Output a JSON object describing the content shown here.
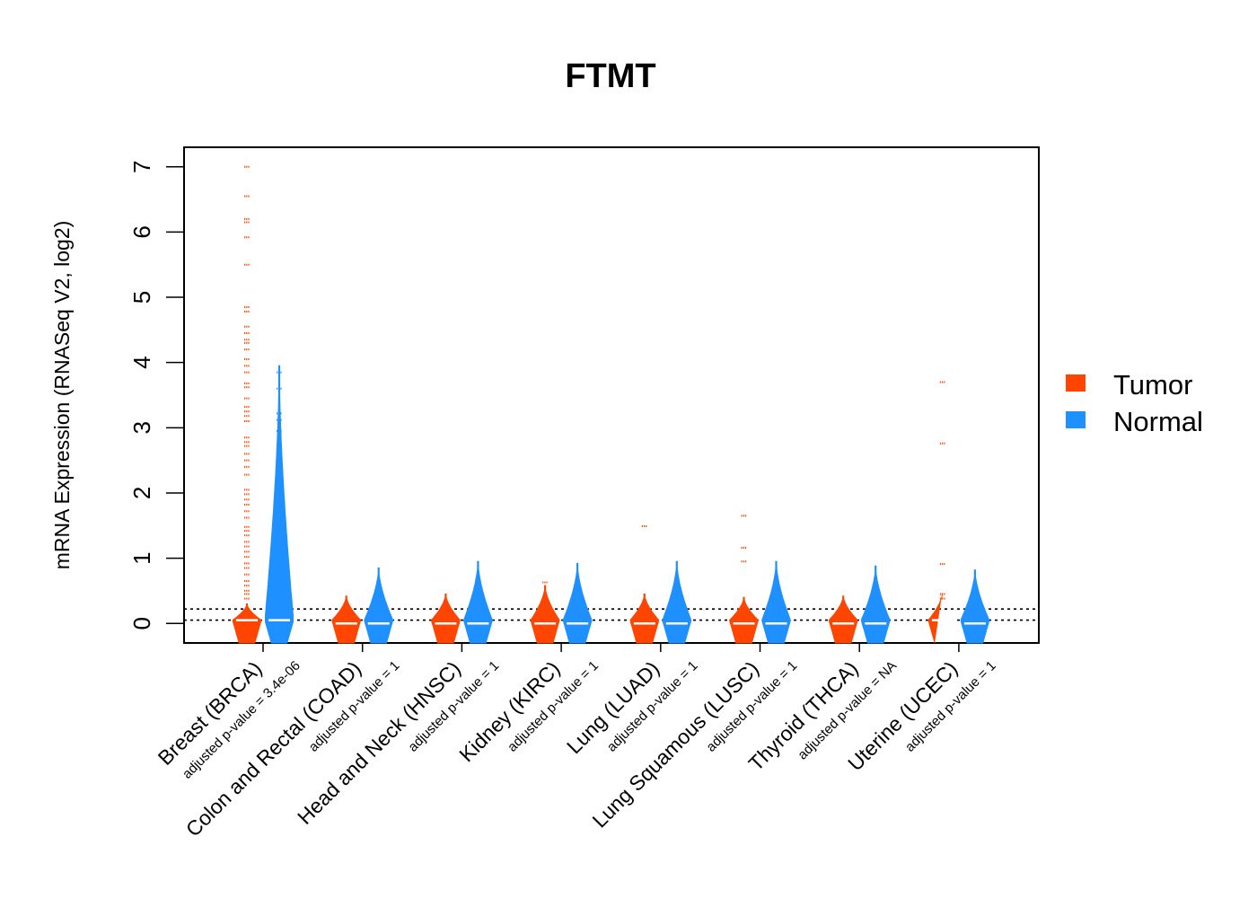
{
  "colors": {
    "tumor": "#ff4500",
    "normal": "#1e90ff"
  },
  "chart_data": {
    "type": "violin",
    "title": "FTMT",
    "ylabel": "mRNA Expression (RNASeq V2, log2)",
    "xlabel": "",
    "ylim": [
      -0.3,
      7.3
    ],
    "yticks": [
      0,
      1,
      2,
      3,
      4,
      5,
      6,
      7
    ],
    "reference_lines": [
      0.05,
      0.22
    ],
    "grid": false,
    "legend": {
      "position": "right",
      "entries": [
        {
          "label": "Tumor",
          "color_key": "tumor"
        },
        {
          "label": "Normal",
          "color_key": "normal"
        }
      ]
    },
    "groups": [
      {
        "category": "Breast (BRCA)",
        "p_label": "adjusted p-value = 3.4e-06",
        "tumor": {
          "max": 0.3,
          "median": 0.05,
          "outliers": [
            7.0,
            6.55,
            6.2,
            6.15,
            5.92,
            5.5,
            4.85,
            4.78,
            4.55,
            4.45,
            4.35,
            4.3,
            4.2,
            4.05,
            3.95,
            3.85,
            3.68,
            3.62,
            3.45,
            3.32,
            3.25,
            3.18,
            3.1,
            2.85,
            2.78,
            2.72,
            2.6,
            2.5,
            2.4,
            2.28,
            2.05,
            1.98,
            1.9,
            1.82,
            1.72,
            1.62,
            1.48,
            1.42,
            1.35,
            1.25,
            1.18,
            1.1,
            1.02,
            0.92,
            0.85,
            0.75,
            0.65,
            0.58,
            0.5,
            0.45,
            0.38
          ]
        },
        "normal": {
          "max": 3.95,
          "median": 0.05,
          "outliers": [
            3.85,
            3.6,
            3.22,
            3.12,
            2.95,
            2.6,
            2.4,
            2.2,
            2.0,
            1.9,
            1.75,
            1.6,
            1.45,
            1.3,
            1.15,
            1.0,
            0.85,
            0.7,
            0.55,
            0.45,
            0.35
          ]
        }
      },
      {
        "category": "Colon and Rectal (COAD)",
        "p_label": "adjusted p-value = 1",
        "tumor": {
          "max": 0.42,
          "median": 0.0,
          "outliers": []
        },
        "normal": {
          "max": 0.85,
          "median": 0.0,
          "outliers": []
        }
      },
      {
        "category": "Head and Neck (HNSC)",
        "p_label": "adjusted p-value = 1",
        "tumor": {
          "max": 0.45,
          "median": 0.0,
          "outliers": []
        },
        "normal": {
          "max": 0.95,
          "median": 0.0,
          "outliers": [
            0.68
          ]
        }
      },
      {
        "category": "Kidney (KIRC)",
        "p_label": "adjusted p-value = 1",
        "tumor": {
          "max": 0.58,
          "median": 0.0,
          "outliers": [
            0.63
          ]
        },
        "normal": {
          "max": 0.92,
          "median": 0.0,
          "outliers": []
        }
      },
      {
        "category": "Lung (LUAD)",
        "p_label": "adjusted p-value = 1",
        "tumor": {
          "max": 0.45,
          "median": 0.0,
          "outliers": [
            1.49
          ]
        },
        "normal": {
          "max": 0.95,
          "median": 0.0,
          "outliers": []
        }
      },
      {
        "category": "Lung Squamous (LUSC)",
        "p_label": "adjusted p-value = 1",
        "tumor": {
          "max": 0.4,
          "median": 0.0,
          "outliers": [
            1.65,
            1.16,
            0.95
          ]
        },
        "normal": {
          "max": 0.95,
          "median": 0.0,
          "outliers": []
        }
      },
      {
        "category": "Thyroid (THCA)",
        "p_label": "adjusted p-value = NA",
        "tumor": {
          "max": 0.42,
          "median": 0.0,
          "outliers": []
        },
        "normal": {
          "max": 0.88,
          "median": 0.0,
          "outliers": []
        }
      },
      {
        "category": "Uterine (UCEC)",
        "p_label": "adjusted p-value = 1",
        "tumor": {
          "max": 0.48,
          "median": 0.05,
          "outliers": [
            3.7,
            2.76,
            0.91,
            0.45,
            0.38
          ]
        },
        "normal": {
          "max": 0.82,
          "median": 0.0,
          "outliers": []
        }
      }
    ]
  }
}
